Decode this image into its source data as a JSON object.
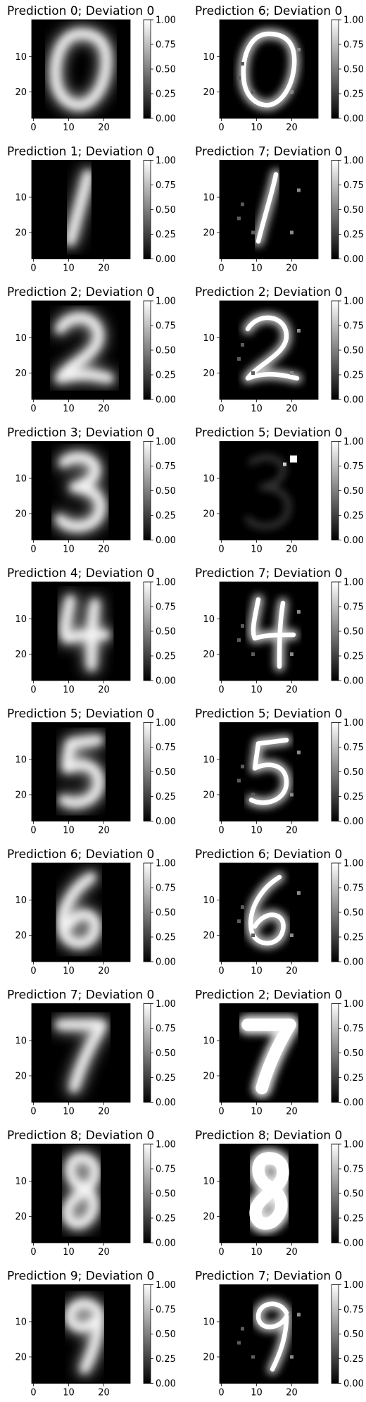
{
  "figure": {
    "panels": [
      {
        "title": "Prediction 0; Deviation 0",
        "digit": "0",
        "style": "clean"
      },
      {
        "title": "Prediction 6; Deviation 0",
        "digit": "0",
        "style": "noisy"
      },
      {
        "title": "Prediction 1; Deviation 0",
        "digit": "1",
        "style": "clean"
      },
      {
        "title": "Prediction 7; Deviation 0",
        "digit": "1",
        "style": "noisy"
      },
      {
        "title": "Prediction 2; Deviation 0",
        "digit": "2",
        "style": "clean"
      },
      {
        "title": "Prediction 2; Deviation 0",
        "digit": "2",
        "style": "noisy"
      },
      {
        "title": "Prediction 3; Deviation 0",
        "digit": "3",
        "style": "clean"
      },
      {
        "title": "Prediction 5; Deviation 0",
        "digit": "3",
        "style": "faint"
      },
      {
        "title": "Prediction 4; Deviation 0",
        "digit": "4",
        "style": "clean"
      },
      {
        "title": "Prediction 7; Deviation 0",
        "digit": "4",
        "style": "noisy"
      },
      {
        "title": "Prediction 5; Deviation 0",
        "digit": "5",
        "style": "clean"
      },
      {
        "title": "Prediction 5; Deviation 0",
        "digit": "5",
        "style": "noisy"
      },
      {
        "title": "Prediction 6; Deviation 0",
        "digit": "6",
        "style": "clean"
      },
      {
        "title": "Prediction 6; Deviation 0",
        "digit": "6",
        "style": "noisy"
      },
      {
        "title": "Prediction 7; Deviation 0",
        "digit": "7",
        "style": "clean"
      },
      {
        "title": "Prediction 2; Deviation 0",
        "digit": "7",
        "style": "blob"
      },
      {
        "title": "Prediction 8; Deviation 0",
        "digit": "8",
        "style": "clean"
      },
      {
        "title": "Prediction 8; Deviation 0",
        "digit": "8",
        "style": "blob"
      },
      {
        "title": "Prediction 9; Deviation 0",
        "digit": "9",
        "style": "clean"
      },
      {
        "title": "Prediction 7; Deviation 0",
        "digit": "9",
        "style": "noisy"
      }
    ],
    "x_ticks": [
      "0",
      "10",
      "20"
    ],
    "y_ticks": [
      "10",
      "20"
    ],
    "colorbar_ticks": [
      "1.00",
      "0.75",
      "0.50",
      "0.25",
      "0.00"
    ],
    "colors": {
      "background": "#000000",
      "stroke": "#ffffff",
      "text": "#000000"
    }
  }
}
